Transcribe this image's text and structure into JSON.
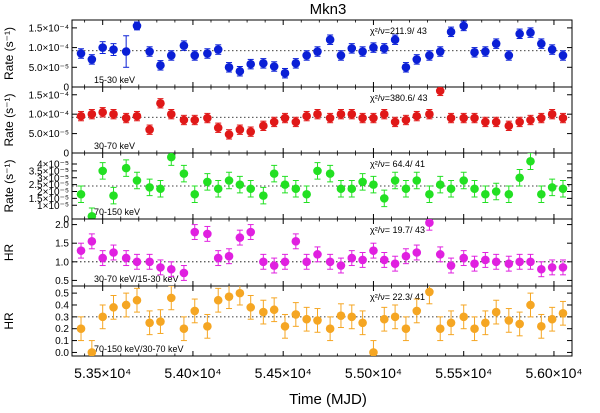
{
  "chart_data": {
    "type": "scatter",
    "title": "Mkn3",
    "xlabel": "Time (MJD)",
    "xlim": [
      53330,
      56100
    ],
    "xticks": [
      {
        "value": 53500,
        "label": "5.35×10⁴"
      },
      {
        "value": 54000,
        "label": "5.40×10⁴"
      },
      {
        "value": 54500,
        "label": "5.45×10⁴"
      },
      {
        "value": 55000,
        "label": "5.50×10⁴"
      },
      {
        "value": 55500,
        "label": "5.55×10⁴"
      },
      {
        "value": 56000,
        "label": "5.60×10⁴"
      }
    ],
    "x": [
      53380,
      53440,
      53500,
      53560,
      53630,
      53690,
      53760,
      53820,
      53880,
      53950,
      54010,
      54080,
      54140,
      54200,
      54260,
      54320,
      54390,
      54450,
      54510,
      54570,
      54630,
      54690,
      54760,
      54820,
      54880,
      54940,
      55000,
      55060,
      55120,
      55180,
      55240,
      55310,
      55370,
      55430,
      55500,
      55560,
      55620,
      55680,
      55750,
      55810,
      55870,
      55930,
      55990,
      56050
    ],
    "panels": [
      {
        "id": "p1",
        "ylabel": "Rate (s⁻¹)",
        "ylim": [
          0,
          0.00017
        ],
        "ref": 9.2e-05,
        "color": "#0a1fd6",
        "yticks": [
          {
            "value": 0,
            "label": "0"
          },
          {
            "value": 5e-05,
            "label": "5.0×10⁻⁵"
          },
          {
            "value": 0.0001,
            "label": "1.0×10⁻⁴"
          },
          {
            "value": 0.00015,
            "label": "1.5×10⁻⁴"
          }
        ],
        "band": "15-30 keV",
        "chi": "χ²/ν=211.9/ 43",
        "values": [
          8.5e-05,
          7e-05,
          0.0001,
          9.5e-05,
          9e-05,
          0.000155,
          9e-05,
          5.5e-05,
          8e-05,
          0.000105,
          8e-05,
          8.5e-05,
          9.5e-05,
          5e-05,
          4e-05,
          5.8e-05,
          6e-05,
          5.2e-05,
          3.5e-05,
          6e-05,
          8e-05,
          9e-05,
          0.00012,
          8e-05,
          9.8e-05,
          9e-05,
          0.0001,
          9.8e-05,
          0.00012,
          5e-05,
          7e-05,
          8e-05,
          9e-05,
          0.00014,
          0.000155,
          8.8e-05,
          9e-05,
          0.00011,
          8e-05,
          0.000135,
          0.000138,
          0.00011,
          9.5e-05,
          8e-05
        ],
        "errors": [
          1.2e-05,
          1.2e-05,
          1.5e-05,
          1.5e-05,
          4e-05,
          1e-05,
          1.2e-05,
          1.2e-05,
          1.2e-05,
          1.2e-05,
          1.2e-05,
          1.2e-05,
          1.2e-05,
          1.2e-05,
          1.2e-05,
          1.2e-05,
          1.2e-05,
          1.2e-05,
          1.2e-05,
          1.2e-05,
          1.2e-05,
          1.2e-05,
          1.2e-05,
          1.2e-05,
          1.2e-05,
          1.2e-05,
          1.2e-05,
          1.2e-05,
          1.2e-05,
          1.2e-05,
          1.2e-05,
          1.2e-05,
          1.2e-05,
          1.2e-05,
          1.2e-05,
          1.2e-05,
          1.2e-05,
          1.2e-05,
          1.2e-05,
          1.2e-05,
          1.2e-05,
          1.2e-05,
          1.2e-05,
          1.2e-05
        ]
      },
      {
        "id": "p2",
        "ylabel": "Rate (s⁻¹)",
        "ylim": [
          0,
          0.00017
        ],
        "ref": 9.2e-05,
        "color": "#e01818",
        "yticks": [
          {
            "value": 0,
            "label": "0"
          },
          {
            "value": 5e-05,
            "label": "5.0×10⁻⁵"
          },
          {
            "value": 0.0001,
            "label": "1.0×10⁻⁴"
          },
          {
            "value": 0.00015,
            "label": "1.5×10⁻⁴"
          }
        ],
        "band": "30-70 keV",
        "chi": "χ²/ν=380.6/ 43",
        "values": [
          9.5e-05,
          0.0001,
          0.000105,
          0.0001,
          9e-05,
          9.5e-05,
          6e-05,
          0.000128,
          0.0001,
          8.5e-05,
          8.5e-05,
          9e-05,
          6.5e-05,
          4.8e-05,
          6e-05,
          5.5e-05,
          7e-05,
          8e-05,
          9e-05,
          8e-05,
          9.5e-05,
          0.0001,
          9e-05,
          0.0001,
          0.0001,
          9e-05,
          9e-05,
          0.0001,
          8e-05,
          8.5e-05,
          9.5e-05,
          0.0001,
          0.00016,
          9e-05,
          9e-05,
          9e-05,
          8e-05,
          8e-05,
          7e-05,
          8e-05,
          8.5e-05,
          9e-05,
          0.0001,
          9e-05
        ],
        "errors": [
          1.2e-05,
          1.2e-05,
          1.2e-05,
          1.2e-05,
          1.2e-05,
          1.2e-05,
          1.2e-05,
          1.2e-05,
          1.2e-05,
          1.2e-05,
          1.2e-05,
          1.2e-05,
          1.2e-05,
          1.2e-05,
          1.2e-05,
          1.2e-05,
          1.2e-05,
          1.2e-05,
          1.2e-05,
          1.2e-05,
          1.2e-05,
          1.2e-05,
          1.2e-05,
          1.2e-05,
          1.2e-05,
          1.2e-05,
          1.2e-05,
          1.2e-05,
          1.2e-05,
          1.2e-05,
          1.2e-05,
          1.2e-05,
          1.2e-05,
          1.2e-05,
          1.2e-05,
          1.2e-05,
          1.2e-05,
          1.2e-05,
          1.2e-05,
          1.2e-05,
          1.2e-05,
          1.2e-05,
          1.2e-05,
          1.2e-05
        ]
      },
      {
        "id": "p3",
        "ylabel": "Rate (s⁻¹)",
        "ylim": [
          0,
          4.8e-05
        ],
        "ref": 2.4e-05,
        "color": "#22e022",
        "yticks": [
          {
            "value": 0,
            "label": "0"
          },
          {
            "value": 1e-05,
            "label": "1×10⁻⁵"
          },
          {
            "value": 1.5e-05,
            "label": "1.5×10⁻⁵"
          },
          {
            "value": 2e-05,
            "label": "2×10⁻⁵"
          },
          {
            "value": 2.5e-05,
            "label": "2.5×10⁻⁵"
          },
          {
            "value": 3e-05,
            "label": "3×10⁻⁵"
          },
          {
            "value": 3.5e-05,
            "label": "3.5×10⁻⁵"
          },
          {
            "value": 4e-05,
            "label": "4×10⁻⁵"
          }
        ],
        "band": "70-150 keV",
        "chi": "χ²/ν= 64.4/ 41",
        "values": [
          1.8e-05,
          2e-06,
          3.5e-05,
          1.7e-05,
          3.7e-05,
          2.8e-05,
          2.3e-05,
          2.2e-05,
          4.5e-05,
          3.3e-05,
          1.8e-05,
          2.7e-05,
          2.2e-05,
          2.8e-05,
          2.5e-05,
          2.2e-05,
          1.7e-05,
          3.3e-05,
          2.5e-05,
          2.2e-05,
          1.8e-05,
          3.5e-05,
          3.3e-05,
          2.2e-05,
          2.2e-05,
          2.7e-05,
          2.5e-05,
          1.5e-05,
          2.8e-05,
          2.2e-05,
          2.8e-05,
          1.8e-05,
          2.5e-05,
          2.2e-05,
          2.8e-05,
          2.2e-05,
          1.8e-05,
          2e-05,
          1.8e-05,
          3e-05,
          4.2e-05,
          1.8e-05,
          2.3e-05,
          2.2e-05
        ],
        "errors": [
          6e-06,
          6e-06,
          6e-06,
          6e-06,
          6e-06,
          6e-06,
          6e-06,
          6e-06,
          6e-06,
          6e-06,
          6e-06,
          6e-06,
          6e-06,
          6e-06,
          6e-06,
          6e-06,
          6e-06,
          6e-06,
          6e-06,
          6e-06,
          6e-06,
          6e-06,
          6e-06,
          6e-06,
          6e-06,
          6e-06,
          6e-06,
          6e-06,
          6e-06,
          6e-06,
          6e-06,
          6e-06,
          6e-06,
          6e-06,
          6e-06,
          6e-06,
          6e-06,
          6e-06,
          6e-06,
          6e-06,
          6e-06,
          6e-06,
          6e-06,
          6e-06
        ]
      },
      {
        "id": "p4",
        "ylabel": "HR",
        "ylim": [
          0.35,
          2.15
        ],
        "ref": 1.0,
        "color": "#e020e0",
        "yticks": [
          {
            "value": 0.5,
            "label": "0.5"
          },
          {
            "value": 1.0,
            "label": "1.0"
          },
          {
            "value": 1.5,
            "label": "1.5"
          },
          {
            "value": 2.0,
            "label": "2.0"
          }
        ],
        "band": "30-70 keV/15-30 keV",
        "chi": "χ²/ν= 19.7/ 43",
        "values": [
          1.3,
          1.55,
          1.1,
          1.25,
          1.1,
          1.0,
          1.0,
          0.85,
          0.8,
          0.7,
          1.8,
          1.75,
          1.1,
          1.15,
          1.65,
          1.8,
          1.0,
          0.9,
          1.0,
          1.55,
          1.0,
          1.2,
          1.0,
          0.9,
          1.1,
          1.05,
          1.3,
          1.05,
          0.95,
          1.15,
          1.25,
          2.05,
          1.2,
          0.9,
          1.1,
          0.95,
          1.05,
          1.0,
          0.95,
          1.0,
          1.0,
          0.8,
          0.85,
          0.85
        ],
        "errors": [
          0.2,
          0.2,
          0.2,
          0.2,
          0.2,
          0.2,
          0.2,
          0.2,
          0.2,
          0.2,
          0.2,
          0.2,
          0.2,
          0.2,
          0.2,
          0.2,
          0.2,
          0.2,
          0.2,
          0.2,
          0.2,
          0.2,
          0.2,
          0.2,
          0.2,
          0.2,
          0.2,
          0.2,
          0.2,
          0.2,
          0.2,
          0.2,
          0.2,
          0.2,
          0.2,
          0.2,
          0.2,
          0.2,
          0.2,
          0.2,
          0.2,
          0.2,
          0.2,
          0.2
        ]
      },
      {
        "id": "p5",
        "ylabel": "HR",
        "ylim": [
          -0.03,
          0.56
        ],
        "ref": 0.3,
        "color": "#f5a623",
        "yticks": [
          {
            "value": 0.0,
            "label": "0.0"
          },
          {
            "value": 0.1,
            "label": "0.1"
          },
          {
            "value": 0.2,
            "label": "0.2"
          },
          {
            "value": 0.3,
            "label": "0.3"
          },
          {
            "value": 0.4,
            "label": "0.4"
          },
          {
            "value": 0.5,
            "label": "0.5"
          }
        ],
        "band": "70-150 keV/30-70 keV",
        "chi": "χ²/ν= 22.3/ 41",
        "values": [
          0.2,
          0.0,
          0.3,
          0.38,
          0.4,
          0.44,
          0.25,
          0.26,
          0.46,
          0.2,
          0.35,
          0.22,
          0.44,
          0.47,
          0.5,
          0.38,
          0.34,
          0.36,
          0.22,
          0.32,
          0.28,
          0.27,
          0.2,
          0.31,
          0.3,
          0.25,
          0.0,
          0.28,
          0.3,
          0.2,
          0.35,
          0.51,
          0.2,
          0.25,
          0.3,
          0.2,
          0.25,
          0.34,
          0.27,
          0.24,
          0.4,
          0.22,
          0.28,
          0.33
        ],
        "errors": [
          0.1,
          0.1,
          0.1,
          0.1,
          0.1,
          0.1,
          0.1,
          0.1,
          0.1,
          0.1,
          0.1,
          0.1,
          0.1,
          0.1,
          0.1,
          0.1,
          0.1,
          0.1,
          0.1,
          0.1,
          0.1,
          0.1,
          0.1,
          0.1,
          0.1,
          0.1,
          0.1,
          0.1,
          0.1,
          0.1,
          0.1,
          0.1,
          0.1,
          0.1,
          0.1,
          0.1,
          0.1,
          0.1,
          0.1,
          0.1,
          0.1,
          0.1,
          0.1,
          0.1
        ]
      }
    ]
  }
}
